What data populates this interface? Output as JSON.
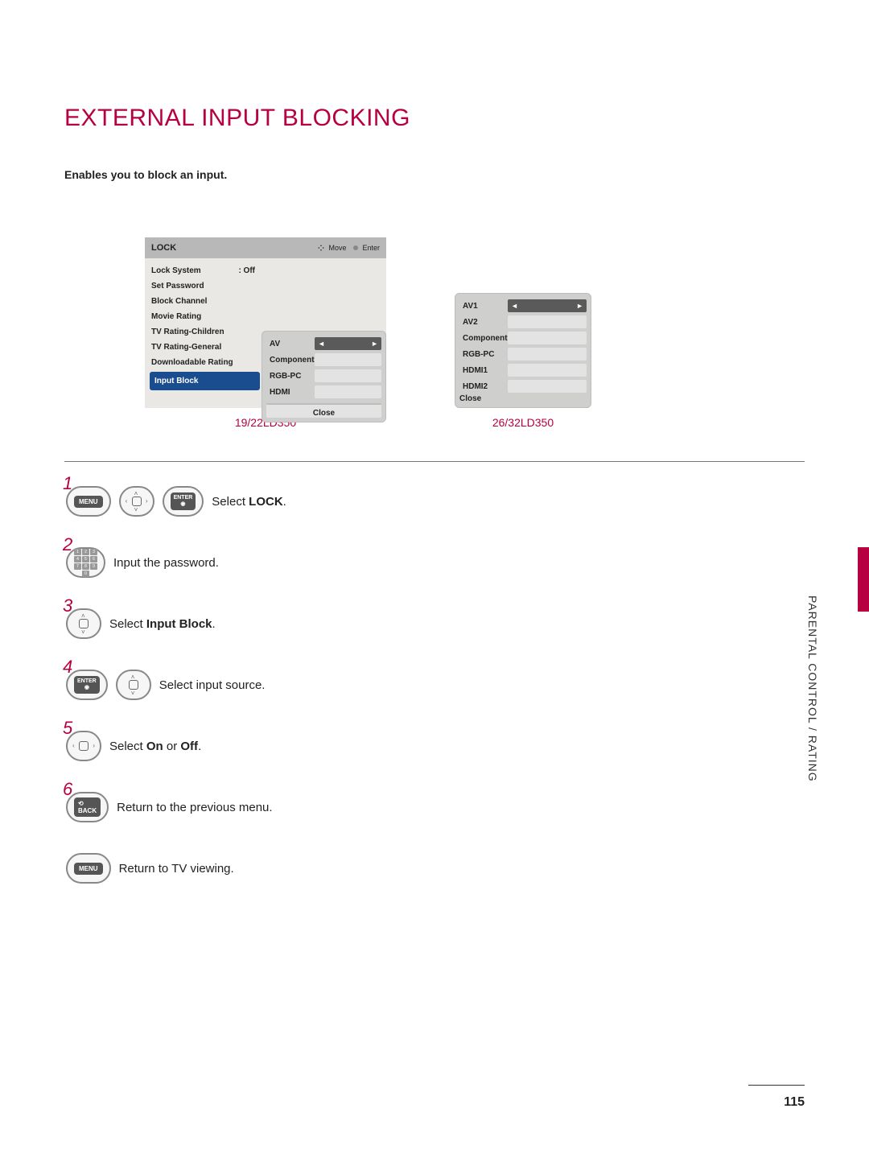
{
  "title": "EXTERNAL INPUT BLOCKING",
  "subtitle": "Enables you to block an input.",
  "colors": {
    "accent": "#b60042",
    "menu_header_bg": "#b8b8b8",
    "menu_body_bg": "#e9e8e4",
    "selected_bg": "#1a4d8f",
    "submenu_bg": "#cfcfce"
  },
  "lock_menu": {
    "header_title": "LOCK",
    "header_hints": [
      "Move",
      "Enter"
    ],
    "items": [
      {
        "label": "Lock System",
        "value": ": Off"
      },
      {
        "label": "Set Password"
      },
      {
        "label": "Block Channel"
      },
      {
        "label": "Movie Rating"
      },
      {
        "label": "TV Rating-Children"
      },
      {
        "label": "TV Rating-General"
      },
      {
        "label": "Downloadable Rating"
      },
      {
        "label": "Input Block",
        "selected": true
      }
    ]
  },
  "submenu1": {
    "rows": [
      {
        "label": "AV",
        "active": true
      },
      {
        "label": "Component"
      },
      {
        "label": "RGB-PC"
      },
      {
        "label": "HDMI"
      }
    ],
    "close": "Close",
    "caption": "19/22LD350"
  },
  "submenu2": {
    "rows": [
      {
        "label": "AV1",
        "active": true
      },
      {
        "label": "AV2"
      },
      {
        "label": "Component"
      },
      {
        "label": "RGB-PC"
      },
      {
        "label": "HDMI1"
      },
      {
        "label": "HDMI2"
      }
    ],
    "close": "Close",
    "caption": "26/32LD350"
  },
  "steps": [
    {
      "n": "1",
      "buttons": [
        "MENU",
        "dpad-full",
        "ENTER"
      ],
      "text_pre": "Select ",
      "text_bold": "LOCK",
      "text_post": "."
    },
    {
      "n": "2",
      "buttons": [
        "numpad"
      ],
      "text_pre": "Input the password.",
      "text_bold": "",
      "text_post": ""
    },
    {
      "n": "3",
      "buttons": [
        "dpad-ud"
      ],
      "text_pre": "Select ",
      "text_bold": "Input Block",
      "text_post": "."
    },
    {
      "n": "4",
      "buttons": [
        "ENTER",
        "dpad-ud"
      ],
      "text_pre": "Select input source.",
      "text_bold": "",
      "text_post": ""
    },
    {
      "n": "5",
      "buttons": [
        "dpad-lr"
      ],
      "text_pre": "Select ",
      "text_bold": "On",
      "text_mid": " or ",
      "text_bold2": "Off",
      "text_post": "."
    },
    {
      "n": "6",
      "buttons": [
        "BACK"
      ],
      "text_pre": "Return to the previous menu.",
      "text_bold": "",
      "text_post": ""
    },
    {
      "n": "",
      "buttons": [
        "MENU"
      ],
      "text_pre": "Return to TV viewing.",
      "text_bold": "",
      "text_post": ""
    }
  ],
  "side_label": "PARENTAL CONTROL / RATING",
  "page_number": "115",
  "button_labels": {
    "menu": "MENU",
    "enter": "ENTER",
    "back": "BACK"
  }
}
